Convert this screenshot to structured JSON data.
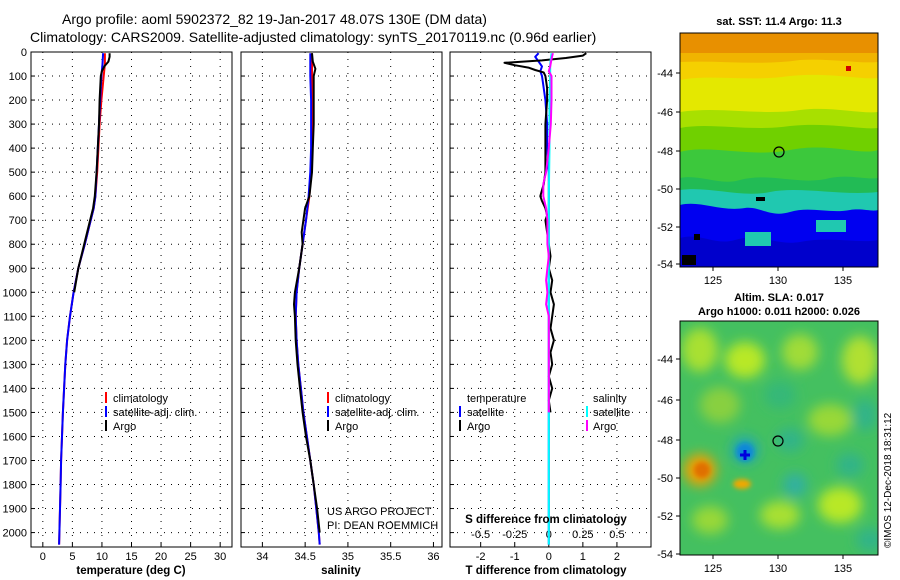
{
  "figure": {
    "title_line1": "Argo profile: aoml 5902372_82 19-Jan-2017 48.07S 130E (DM data)",
    "title_line2": "Climatology: CARS2009. Satellite-adjusted climatology: synTS_20170119.nc (0.96d earlier)",
    "credit_line1": "US ARGO PROJECT",
    "credit_line2": "PI: DEAN ROEMMICH",
    "stamp": "©IMOS 12-Dec-2018 18:31:12"
  },
  "colors": {
    "climatology": "#ff0000",
    "satellite": "#0000ff",
    "argo": "#000000",
    "sal_satellite": "#00ffff",
    "sal_argo": "#ff00ff"
  },
  "depth_axis": {
    "ticks": [
      0,
      100,
      200,
      300,
      400,
      500,
      600,
      700,
      800,
      900,
      1000,
      1100,
      1200,
      1300,
      1400,
      1500,
      1600,
      1700,
      1800,
      1900,
      2000
    ],
    "range": [
      0,
      2060
    ]
  },
  "legend_profile": {
    "climatology": "climatology",
    "satellite": "satellite-adj. clim.",
    "argo": "Argo"
  },
  "legend_diff": {
    "temperature_heading": "temperature",
    "salinity_heading": "salinity",
    "satellite": "satellite",
    "argo": "Argo"
  },
  "map_sst": {
    "title": "sat. SST: 11.4 Argo: 11.3",
    "lat_ticks": [
      "-44",
      "-46",
      "-48",
      "-50",
      "-52",
      "-54"
    ],
    "lon_ticks": [
      "125",
      "130",
      "135"
    ]
  },
  "map_sla": {
    "title_line1": "Altim. SLA: 0.017",
    "title_line2": "Argo h1000: 0.011 h2000: 0.026",
    "lat_ticks": [
      "-44",
      "-46",
      "-48",
      "-50",
      "-52",
      "-54"
    ],
    "lon_ticks": [
      "125",
      "130",
      "135"
    ]
  },
  "chart_data": [
    {
      "type": "line",
      "xlabel": "temperature (deg C)",
      "ylabel": "",
      "xlim": [
        -2,
        32
      ],
      "ylim": [
        2060,
        0
      ],
      "xticks": [
        "0",
        "5",
        "10",
        "15",
        "20",
        "25",
        "30"
      ],
      "xtick_values": [
        0,
        5,
        10,
        15,
        20,
        25,
        30
      ],
      "series": [
        {
          "name": "climatology",
          "depth": [
            5,
            50,
            100,
            200,
            300,
            400,
            500,
            600,
            650,
            700,
            800,
            900,
            1000,
            1100,
            1200,
            1300,
            1400,
            1500,
            1600,
            1700,
            1800,
            1900,
            2000,
            2050
          ],
          "values": [
            10.5,
            10.5,
            10.3,
            9.9,
            9.6,
            9.4,
            9.2,
            8.9,
            8.6,
            8.1,
            7.1,
            6.0,
            5.2,
            4.6,
            4.1,
            3.8,
            3.6,
            3.4,
            3.25,
            3.1,
            3.0,
            2.9,
            2.8,
            2.75
          ]
        },
        {
          "name": "satellite-adj. clim.",
          "depth": [
            5,
            50,
            100,
            200,
            300,
            400,
            500,
            600,
            650,
            700,
            800,
            900,
            1000,
            1100,
            1200,
            1300,
            1400,
            1500,
            1600,
            1700,
            1800,
            1900,
            2000,
            2050
          ],
          "values": [
            10.2,
            10.1,
            9.9,
            9.7,
            9.5,
            9.3,
            9.1,
            8.9,
            8.6,
            8.1,
            7.1,
            6.0,
            5.2,
            4.6,
            4.1,
            3.8,
            3.6,
            3.4,
            3.25,
            3.1,
            3.0,
            2.9,
            2.8,
            2.75
          ]
        },
        {
          "name": "Argo",
          "depth": [
            5,
            20,
            40,
            60,
            80,
            100,
            150,
            200,
            300,
            400,
            500,
            600,
            650,
            700,
            800,
            900,
            1000
          ],
          "values": [
            11.3,
            11.3,
            11.1,
            10.4,
            10.0,
            9.8,
            9.7,
            9.6,
            9.5,
            9.3,
            9.1,
            8.8,
            8.5,
            8.0,
            7.0,
            6.0,
            5.3
          ]
        }
      ]
    },
    {
      "type": "line",
      "xlabel": "salinity",
      "ylabel": "",
      "xlim": [
        33.75,
        36.1
      ],
      "ylim": [
        2060,
        0
      ],
      "xticks": [
        "34",
        "34.5",
        "35",
        "35.5",
        "36"
      ],
      "xtick_values": [
        34,
        34.5,
        35,
        35.5,
        36
      ],
      "series": [
        {
          "name": "climatology",
          "depth": [
            5,
            100,
            200,
            300,
            400,
            500,
            600,
            700,
            800,
            900,
            1000,
            1100,
            1200,
            1300,
            1400,
            1500,
            1600,
            1700,
            1800,
            1900,
            2000,
            2050
          ],
          "values": [
            34.58,
            34.58,
            34.58,
            34.58,
            34.58,
            34.57,
            34.55,
            34.51,
            34.47,
            34.43,
            34.4,
            34.39,
            34.4,
            34.42,
            34.45,
            34.48,
            34.52,
            34.56,
            34.6,
            34.63,
            34.66,
            34.67
          ]
        },
        {
          "name": "satellite-adj. clim.",
          "depth": [
            5,
            100,
            200,
            300,
            400,
            500,
            600,
            700,
            800,
            900,
            1000,
            1100,
            1200,
            1300,
            1400,
            1500,
            1600,
            1700,
            1800,
            1900,
            2000,
            2050
          ],
          "values": [
            34.56,
            34.56,
            34.57,
            34.57,
            34.57,
            34.56,
            34.54,
            34.51,
            34.47,
            34.43,
            34.4,
            34.39,
            34.4,
            34.42,
            34.45,
            34.48,
            34.52,
            34.56,
            34.6,
            34.63,
            34.66,
            34.67
          ]
        },
        {
          "name": "Argo",
          "depth": [
            5,
            40,
            70,
            100,
            200,
            300,
            400,
            500,
            600,
            650,
            700,
            750,
            800,
            900,
            1000,
            1050,
            1100,
            1200,
            1300,
            1400,
            1500,
            1600,
            1700,
            1800,
            1900,
            2000
          ],
          "values": [
            34.58,
            34.59,
            34.62,
            34.6,
            34.6,
            34.6,
            34.59,
            34.58,
            34.55,
            34.5,
            34.48,
            34.46,
            34.47,
            34.43,
            34.38,
            34.37,
            34.38,
            34.39,
            34.41,
            34.44,
            34.47,
            34.51,
            34.56,
            34.6,
            34.64,
            34.67
          ]
        }
      ]
    },
    {
      "type": "line",
      "xlabel": "T difference from climatology",
      "xlabel_top": "S difference from climatology",
      "ylabel": "",
      "xlim": [
        -2.9,
        3.0
      ],
      "ylim": [
        2060,
        0
      ],
      "xticks": [
        "-2",
        "-1",
        "0",
        "1",
        "2"
      ],
      "xtick_values": [
        -2,
        -1,
        0,
        1,
        2
      ],
      "xticks_top": [
        "-0.5",
        "-0.25",
        "0",
        "0.25",
        "0.5"
      ],
      "xticks_top_values": [
        -0.5,
        -0.25,
        0,
        0.25,
        0.5
      ],
      "s_scale_factor": 4,
      "series": [
        {
          "name": "temperature satellite",
          "quantity": "T",
          "depth": [
            5,
            20,
            40,
            60,
            80,
            100,
            200,
            300,
            400,
            500,
            600,
            700,
            800,
            900,
            1000,
            1100,
            1200,
            1300,
            1400,
            1500,
            1600,
            1700,
            1800,
            1900,
            2000,
            2050
          ],
          "values": [
            -0.3,
            -0.4,
            -0.3,
            -0.2,
            -0.25,
            -0.2,
            -0.1,
            -0.05,
            -0.05,
            0.0,
            0.0,
            0.0,
            0.0,
            0.0,
            0.0,
            0.0,
            0.0,
            0.0,
            0.0,
            0.0,
            0.0,
            0.0,
            0.0,
            0.0,
            0.0,
            0.0
          ]
        },
        {
          "name": "temperature Argo",
          "quantity": "T",
          "depth": [
            5,
            15,
            25,
            35,
            45,
            55,
            65,
            75,
            85,
            100,
            150,
            200,
            300,
            400,
            500,
            550,
            600,
            620,
            650,
            680,
            700,
            750,
            800,
            850,
            900,
            950,
            1000,
            1050,
            1100,
            1150,
            1200,
            1250,
            1300,
            1350,
            1400,
            1450,
            1500
          ],
          "values": [
            1.1,
            1.0,
            0.5,
            -0.2,
            -1.3,
            -1.0,
            -0.6,
            -0.4,
            -0.15,
            -0.1,
            -0.05,
            -0.05,
            -0.1,
            -0.1,
            -0.1,
            -0.15,
            -0.25,
            -0.2,
            -0.1,
            -0.05,
            -0.1,
            -0.05,
            0.0,
            0.05,
            0.0,
            0.1,
            0.05,
            0.15,
            0.1,
            0.05,
            0.15,
            0.05,
            0.1,
            0.0,
            0.1,
            0.0,
            0.05
          ]
        },
        {
          "name": "salinity satellite",
          "quantity": "S",
          "depth": [
            5,
            50,
            100,
            200,
            400,
            600,
            800,
            1000,
            1200,
            1400,
            1600,
            1800,
            2000,
            2050
          ],
          "values": [
            0.02,
            0.01,
            0.01,
            0.005,
            0.005,
            0.0,
            0.0,
            0.0,
            0.0,
            0.0,
            0.0,
            0.0,
            0.0,
            0.0
          ]
        },
        {
          "name": "salinity Argo",
          "quantity": "S",
          "depth": [
            5,
            30,
            60,
            80,
            100,
            150,
            200,
            300,
            400,
            500,
            550,
            600,
            650,
            700,
            800,
            850,
            900,
            950,
            1000,
            1050,
            1100,
            1200,
            1300,
            1400,
            1500
          ],
          "values": [
            0.03,
            0.02,
            0.01,
            0.0,
            0.02,
            0.02,
            0.02,
            0.015,
            0.0,
            -0.02,
            -0.04,
            -0.04,
            -0.02,
            -0.01,
            -0.01,
            0.0,
            -0.01,
            -0.02,
            -0.01,
            -0.02,
            0.0,
            0.0,
            0.0,
            0.0,
            0.0
          ]
        }
      ]
    }
  ]
}
